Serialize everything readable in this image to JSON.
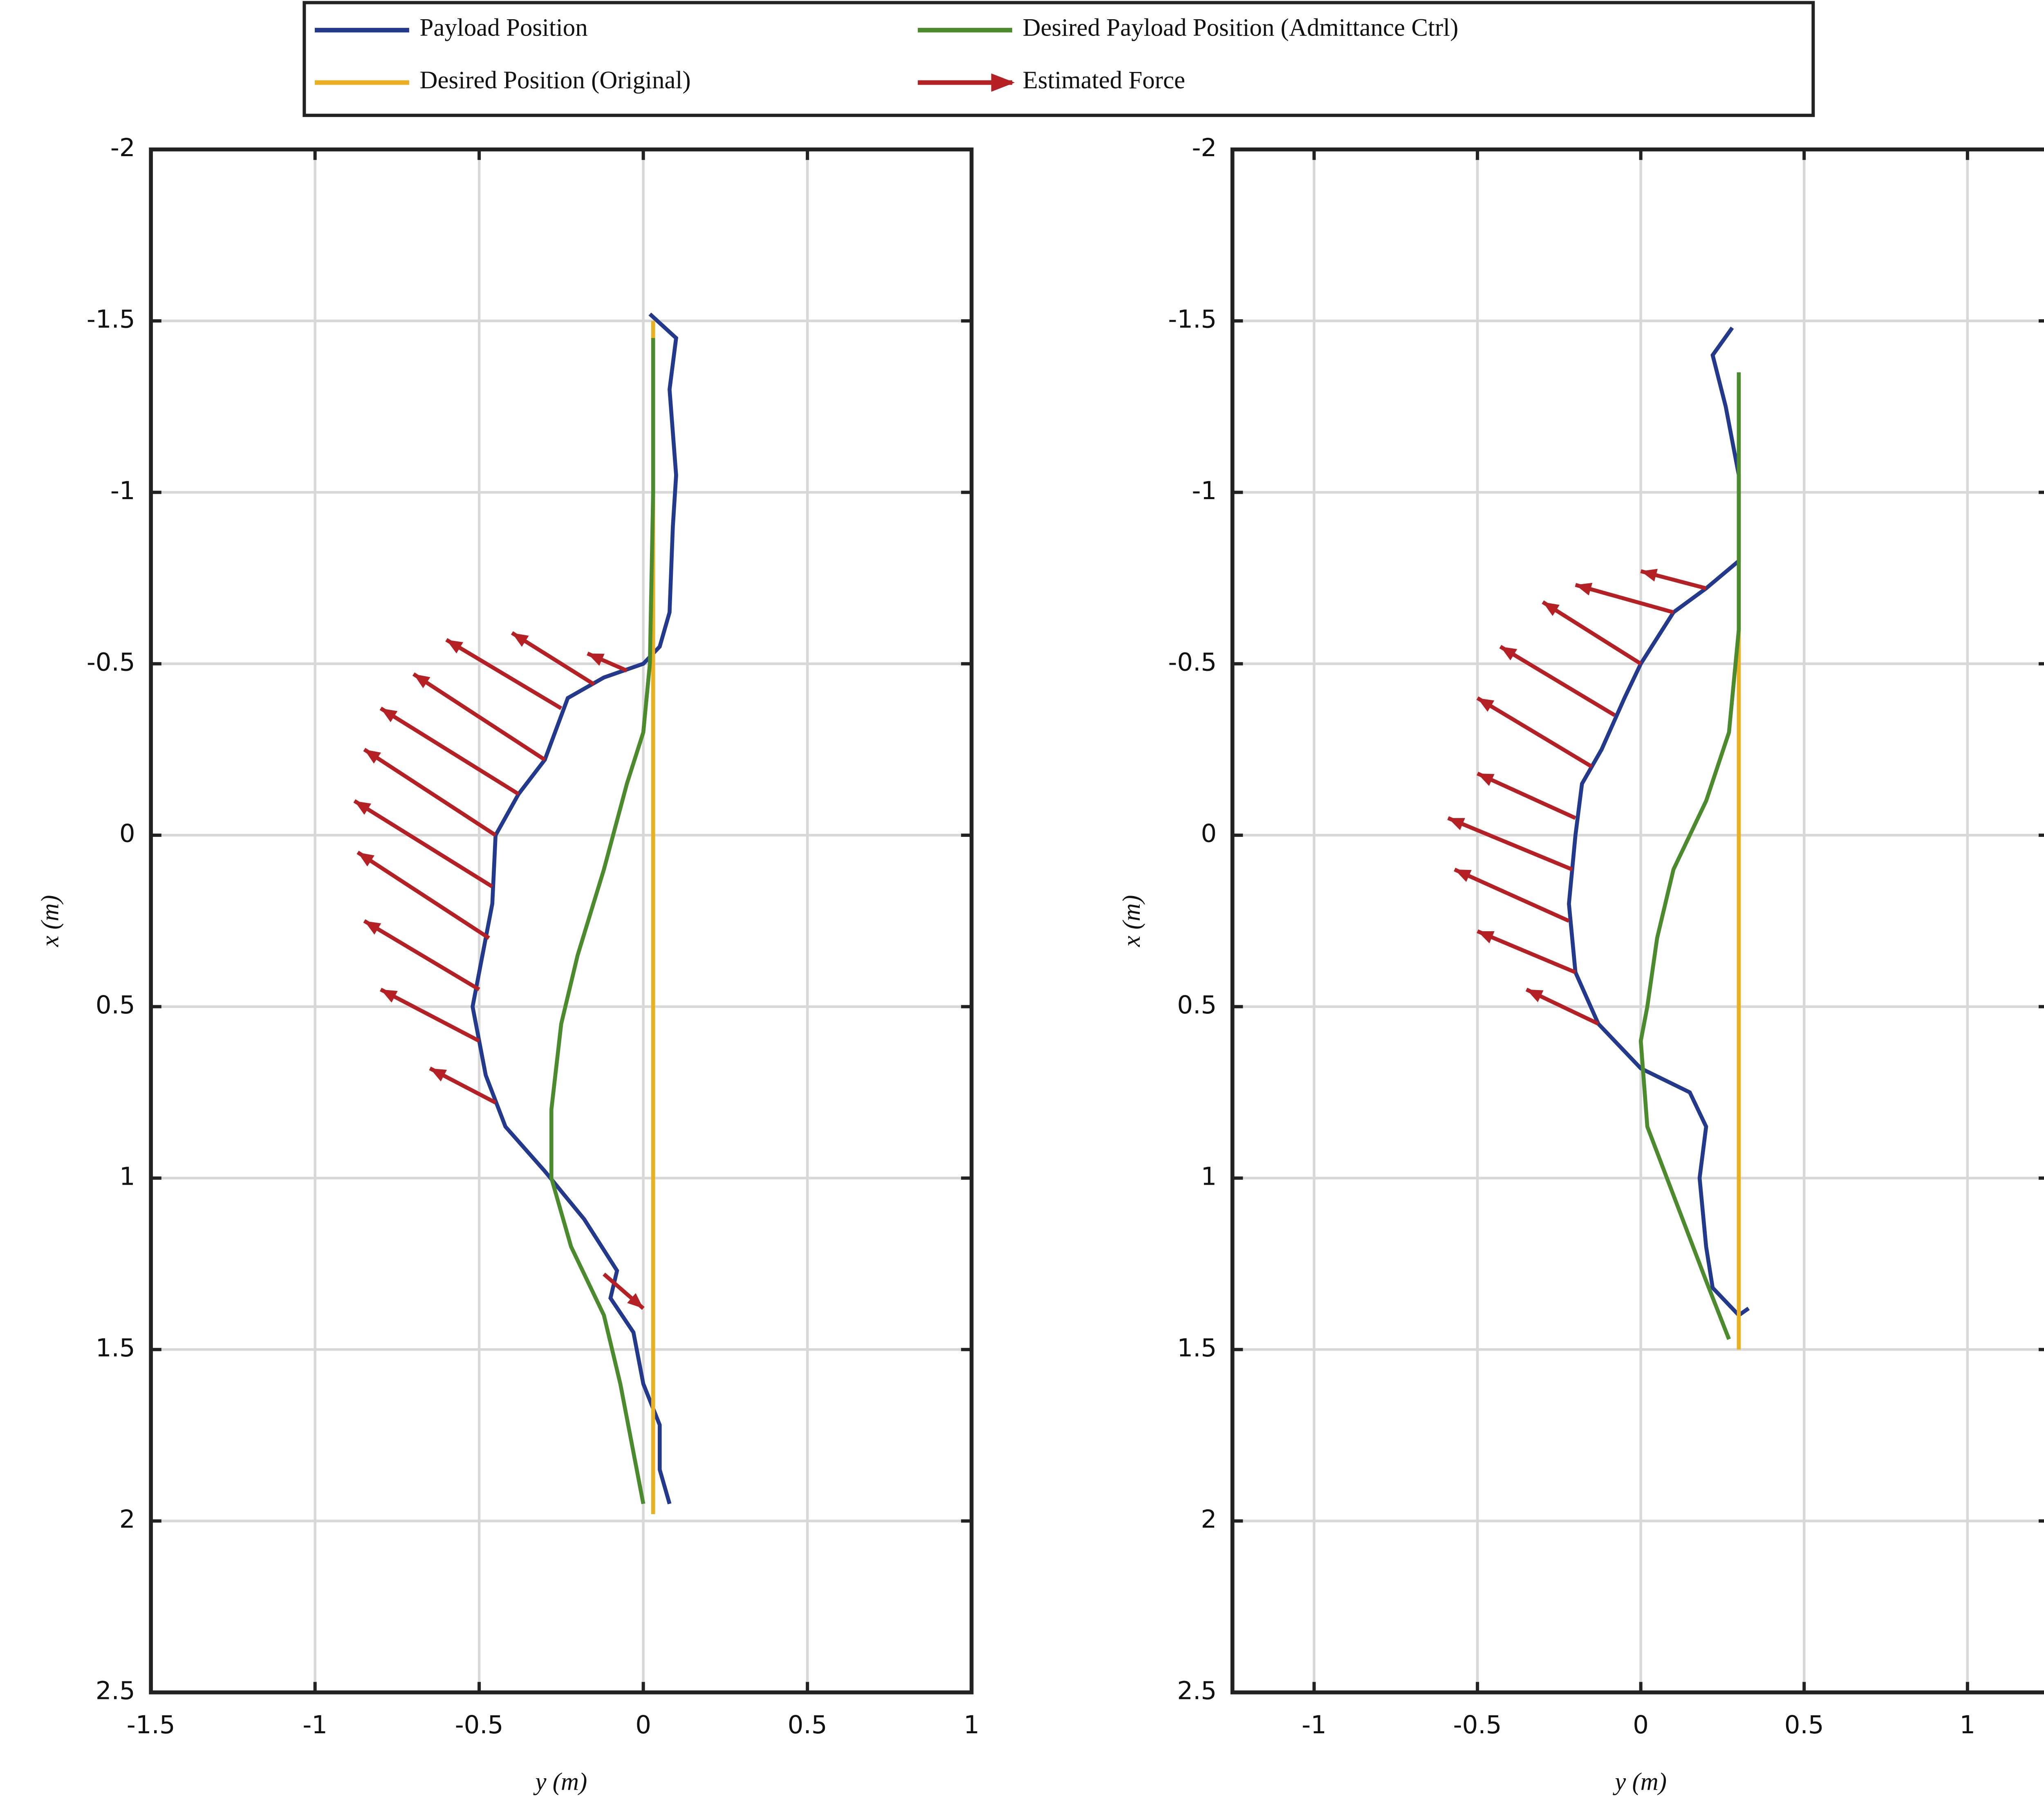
{
  "chart_data": [
    {
      "type": "line",
      "xlabel": "y (m)",
      "ylabel": "x (m)",
      "xlim": [
        -1.5,
        1
      ],
      "xticks": [
        -1.5,
        -1,
        -0.5,
        0,
        0.5,
        1
      ],
      "ylim": [
        -2,
        2.5
      ],
      "yticks": [
        -2,
        -1.5,
        -1,
        -0.5,
        0,
        0.5,
        1,
        1.5,
        2,
        2.5
      ],
      "y_reversed": true,
      "grid": true,
      "series": [
        {
          "name": "Payload Position",
          "color": "#22398c",
          "x": [
            0.02,
            0.1,
            0.08,
            0.1,
            0.09,
            0.08,
            0.05,
            0.0,
            -0.12,
            -0.23,
            -0.3,
            -0.38,
            -0.45,
            -0.46,
            -0.48,
            -0.52,
            -0.48,
            -0.42,
            -0.3,
            -0.18,
            -0.08,
            -0.1,
            -0.03,
            0.0,
            0.05,
            0.05,
            0.08
          ],
          "values": [
            -1.52,
            -1.45,
            -1.3,
            -1.05,
            -0.9,
            -0.65,
            -0.55,
            -0.5,
            -0.46,
            -0.4,
            -0.22,
            -0.12,
            0.0,
            0.2,
            0.3,
            0.5,
            0.7,
            0.85,
            0.98,
            1.12,
            1.27,
            1.35,
            1.45,
            1.6,
            1.72,
            1.85,
            1.95
          ]
        },
        {
          "name": "Desired Position (Original)",
          "color": "#eab022",
          "x": [
            0.03,
            0.03
          ],
          "values": [
            -1.5,
            1.98
          ]
        },
        {
          "name": "Desired Payload Position (Admittance Ctrl)",
          "color": "#4c8a2e",
          "x": [
            0.03,
            0.03,
            0.02,
            0.0,
            -0.05,
            -0.12,
            -0.2,
            -0.25,
            -0.28,
            -0.28,
            -0.22,
            -0.12,
            -0.07,
            0.0
          ],
          "values": [
            -1.45,
            -1.0,
            -0.5,
            -0.3,
            -0.15,
            0.1,
            0.35,
            0.55,
            0.8,
            1.0,
            1.2,
            1.4,
            1.6,
            1.95
          ]
        }
      ],
      "arrows": {
        "name": "Estimated Force",
        "color": "#b52025",
        "items": [
          {
            "x": -0.05,
            "y": -0.48,
            "u": -0.12,
            "v": -0.05
          },
          {
            "x": -0.15,
            "y": -0.44,
            "u": -0.25,
            "v": -0.15
          },
          {
            "x": -0.25,
            "y": -0.37,
            "u": -0.35,
            "v": -0.2
          },
          {
            "x": -0.3,
            "y": -0.22,
            "u": -0.4,
            "v": -0.25
          },
          {
            "x": -0.38,
            "y": -0.12,
            "u": -0.42,
            "v": -0.25
          },
          {
            "x": -0.45,
            "y": 0.0,
            "u": -0.4,
            "v": -0.25
          },
          {
            "x": -0.46,
            "y": 0.15,
            "u": -0.42,
            "v": -0.25
          },
          {
            "x": -0.47,
            "y": 0.3,
            "u": -0.4,
            "v": -0.25
          },
          {
            "x": -0.5,
            "y": 0.45,
            "u": -0.35,
            "v": -0.2
          },
          {
            "x": -0.5,
            "y": 0.6,
            "u": -0.3,
            "v": -0.15
          },
          {
            "x": -0.45,
            "y": 0.78,
            "u": -0.2,
            "v": -0.1
          },
          {
            "x": -0.12,
            "y": 1.28,
            "u": 0.12,
            "v": 0.1
          }
        ]
      }
    },
    {
      "type": "line",
      "xlabel": "y (m)",
      "ylabel": "x (m)",
      "xlim": [
        -1.25,
        1.25
      ],
      "xticks": [
        -1,
        -0.5,
        0,
        0.5,
        1
      ],
      "ylim": [
        -2,
        2.5
      ],
      "yticks": [
        -2,
        -1.5,
        -1,
        -0.5,
        0,
        0.5,
        1,
        1.5,
        2,
        2.5
      ],
      "y_reversed": true,
      "grid": true,
      "series": [
        {
          "color": "#22398c",
          "x": [
            0.28,
            0.22,
            0.26,
            0.3,
            0.3,
            0.2,
            0.1,
            0.0,
            -0.05,
            -0.12,
            -0.18,
            -0.2,
            -0.22,
            -0.2,
            -0.13,
            0.0,
            0.15,
            0.2,
            0.18,
            0.2,
            0.22,
            0.3,
            0.33
          ],
          "values": [
            -1.48,
            -1.4,
            -1.25,
            -1.05,
            -0.8,
            -0.72,
            -0.65,
            -0.5,
            -0.4,
            -0.25,
            -0.15,
            0.0,
            0.2,
            0.4,
            0.55,
            0.68,
            0.75,
            0.85,
            1.0,
            1.2,
            1.32,
            1.4,
            1.38
          ]
        },
        {
          "color": "#eab022",
          "x": [
            0.3,
            0.3
          ],
          "values": [
            -1.33,
            1.5
          ]
        },
        {
          "color": "#4c8a2e",
          "x": [
            0.3,
            0.3,
            0.3,
            0.27,
            0.2,
            0.1,
            0.05,
            0.02,
            0.0,
            0.02,
            0.1,
            0.2,
            0.27
          ],
          "values": [
            -1.35,
            -0.9,
            -0.6,
            -0.3,
            -0.1,
            0.1,
            0.3,
            0.5,
            0.6,
            0.85,
            1.05,
            1.3,
            1.47
          ]
        }
      ],
      "arrows": {
        "color": "#b52025",
        "items": [
          {
            "x": 0.2,
            "y": -0.72,
            "u": -0.2,
            "v": -0.05
          },
          {
            "x": 0.1,
            "y": -0.65,
            "u": -0.3,
            "v": -0.08
          },
          {
            "x": 0.0,
            "y": -0.5,
            "u": -0.3,
            "v": -0.18
          },
          {
            "x": -0.08,
            "y": -0.35,
            "u": -0.35,
            "v": -0.2
          },
          {
            "x": -0.15,
            "y": -0.2,
            "u": -0.35,
            "v": -0.2
          },
          {
            "x": -0.2,
            "y": -0.05,
            "u": -0.3,
            "v": -0.13
          },
          {
            "x": -0.21,
            "y": 0.1,
            "u": -0.38,
            "v": -0.15
          },
          {
            "x": -0.22,
            "y": 0.25,
            "u": -0.35,
            "v": -0.15
          },
          {
            "x": -0.2,
            "y": 0.4,
            "u": -0.3,
            "v": -0.12
          },
          {
            "x": -0.13,
            "y": 0.55,
            "u": -0.22,
            "v": -0.1
          }
        ]
      }
    }
  ]
}
